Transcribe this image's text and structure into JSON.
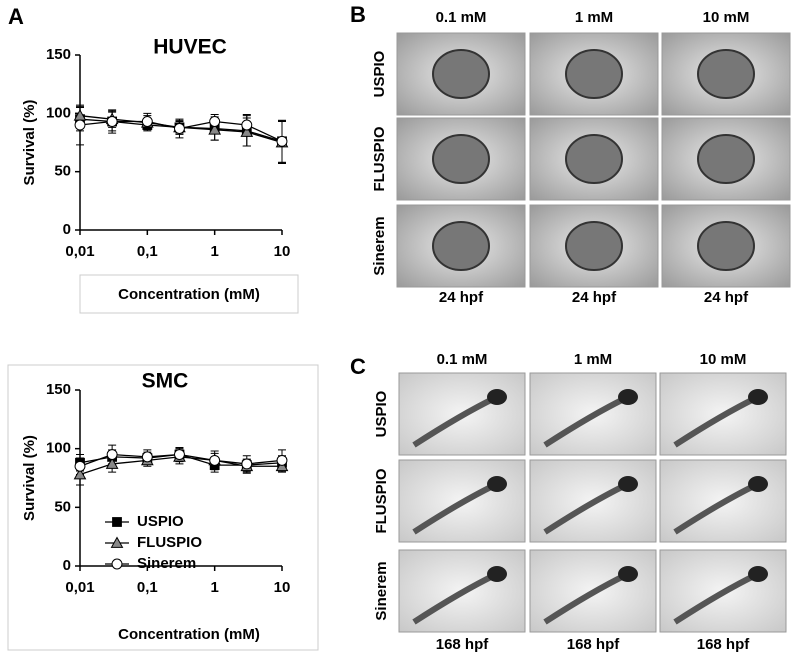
{
  "panel_labels": [
    "A",
    "B",
    "C"
  ],
  "chart_data": [
    {
      "type": "line",
      "title": "HUVEC",
      "y_label": "Survival (%)",
      "x_label": "Concentration (mM)",
      "log_x": true,
      "x": [
        0.01,
        0.03,
        0.1,
        0.3,
        1,
        3,
        10
      ],
      "xlim": [
        0.01,
        10
      ],
      "xticks": [
        {
          "value": 0.01,
          "label": "0,01"
        },
        {
          "value": 0.1,
          "label": "0,1"
        },
        1,
        10
      ],
      "ylim": [
        0,
        150
      ],
      "yticks": [
        0,
        50,
        100,
        150
      ],
      "legend": false,
      "series": [
        {
          "name": "USPIO",
          "marker": "square",
          "color": "#000000",
          "values": [
            95,
            93,
            90,
            88,
            87,
            85,
            76
          ],
          "errors": [
            10,
            8,
            5,
            6,
            10,
            13,
            18
          ]
        },
        {
          "name": "FLUSPIO",
          "marker": "triangle",
          "color": "#888888",
          "values": [
            98,
            95,
            92,
            88,
            86,
            84,
            75
          ],
          "errors": [
            8,
            7,
            6,
            5,
            9,
            12,
            18
          ]
        },
        {
          "name": "Sinerem",
          "marker": "circle",
          "color": "#ffffff",
          "values": [
            90,
            93,
            93,
            87,
            93,
            90,
            76
          ],
          "errors": [
            17,
            10,
            7,
            8,
            6,
            9,
            18
          ]
        }
      ]
    },
    {
      "type": "line",
      "title": "SMC",
      "y_label": "Survival (%)",
      "x_label": "Concentration (mM)",
      "log_x": true,
      "x": [
        0.01,
        0.03,
        0.1,
        0.3,
        1,
        3,
        10
      ],
      "xlim": [
        0.01,
        10
      ],
      "xticks": [
        {
          "value": 0.01,
          "label": "0,01"
        },
        {
          "value": 0.1,
          "label": "0,1"
        },
        1,
        10
      ],
      "ylim": [
        0,
        150
      ],
      "yticks": [
        0,
        50,
        100,
        150
      ],
      "legend": "lower-left",
      "series": [
        {
          "name": "USPIO",
          "marker": "square",
          "color": "#000000",
          "values": [
            88,
            93,
            92,
            95,
            86,
            86,
            88
          ],
          "errors": [
            7,
            6,
            5,
            5,
            6,
            5,
            6
          ]
        },
        {
          "name": "FLUSPIO",
          "marker": "triangle",
          "color": "#888888",
          "values": [
            78,
            87,
            90,
            93,
            90,
            85,
            85
          ],
          "errors": [
            9,
            7,
            5,
            6,
            6,
            6,
            5
          ]
        },
        {
          "name": "Sinerem",
          "marker": "circle",
          "color": "#ffffff",
          "values": [
            85,
            95,
            93,
            95,
            90,
            87,
            90
          ],
          "errors": [
            7,
            8,
            6,
            6,
            8,
            7,
            9
          ]
        }
      ]
    }
  ],
  "image_panels": [
    {
      "columns": [
        "0.1 mM",
        "1 mM",
        "10 mM"
      ],
      "rows": [
        "USPIO",
        "FLUSPIO",
        "Sinerem"
      ],
      "stage": "24 hpf"
    },
    {
      "columns": [
        "0.1 mM",
        "1 mM",
        "10 mM"
      ],
      "rows": [
        "USPIO",
        "FLUSPIO",
        "Sinerem"
      ],
      "stage": "168 hpf"
    }
  ]
}
